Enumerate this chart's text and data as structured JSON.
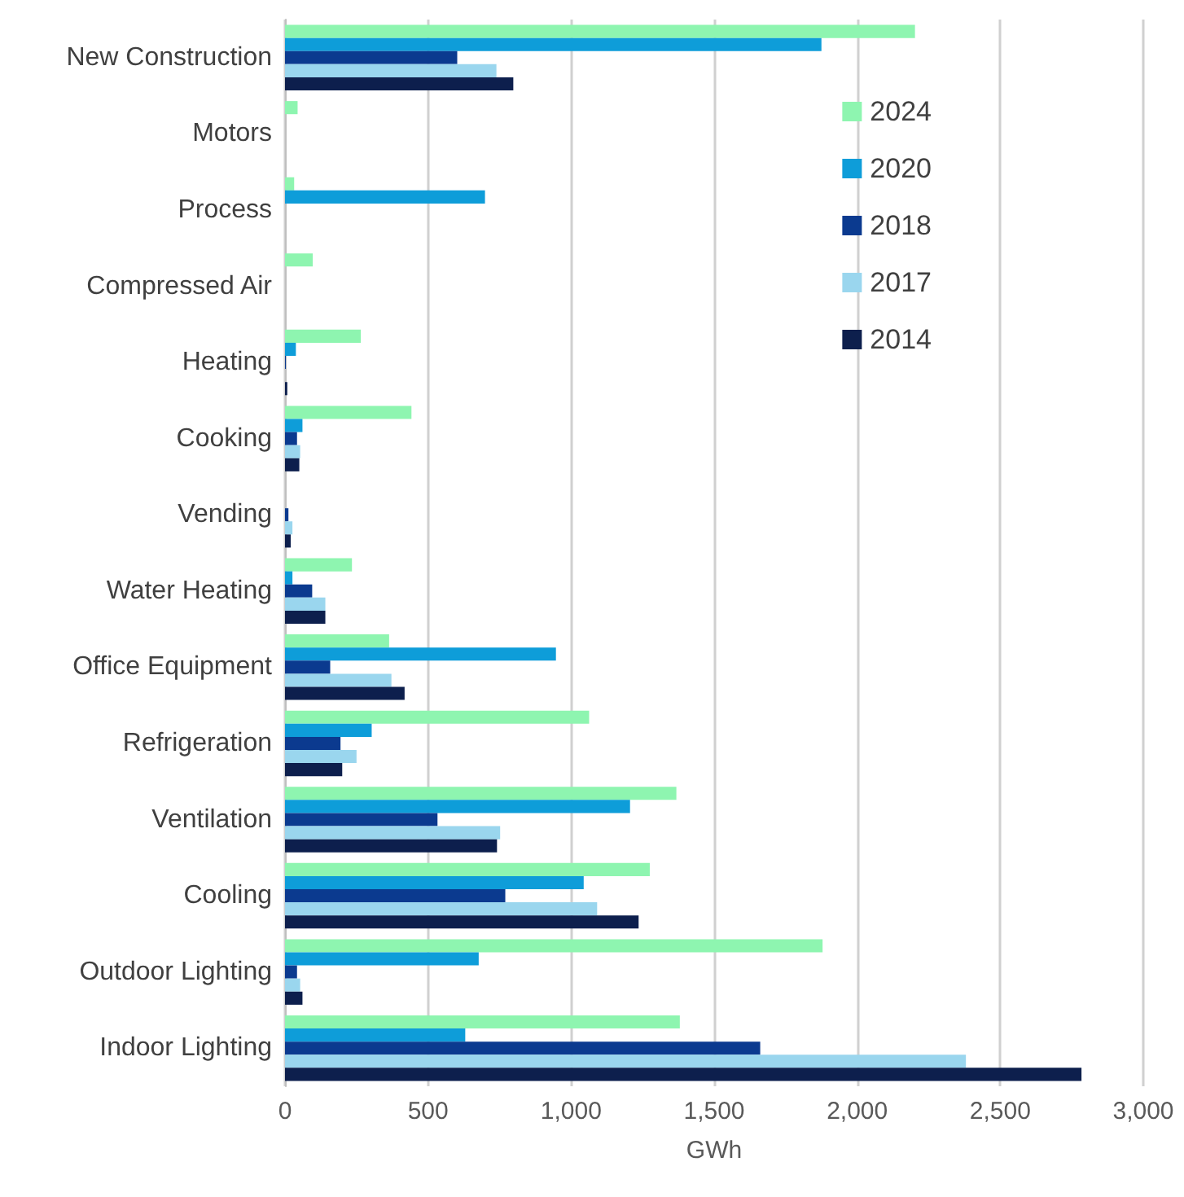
{
  "chart_data": {
    "type": "bar",
    "orientation": "horizontal",
    "xlabel": "GWh",
    "categories": [
      "New Construction",
      "Motors",
      "Process",
      "Compressed Air",
      "Heating",
      "Cooking",
      "Vending",
      "Water Heating",
      "Office Equipment",
      "Refrigeration",
      "Ventilation",
      "Cooling",
      "Outdoor Lighting",
      "Indoor Lighting"
    ],
    "series": [
      {
        "name": "2024",
        "color": "#8ef5b0",
        "values": [
          2202,
          44,
          32,
          97,
          265,
          442,
          0,
          234,
          364,
          1063,
          1368,
          1275,
          1879,
          1380
        ]
      },
      {
        "name": "2020",
        "color": "#0e9dd9",
        "values": [
          1875,
          0,
          699,
          0,
          38,
          61,
          0,
          26,
          947,
          303,
          1206,
          1044,
          677,
          630
        ]
      },
      {
        "name": "2018",
        "color": "#0b3a8f",
        "values": [
          602,
          0,
          0,
          0,
          3,
          42,
          12,
          95,
          158,
          194,
          533,
          770,
          42,
          1661
        ]
      },
      {
        "name": "2017",
        "color": "#9ad6ee",
        "values": [
          739,
          0,
          0,
          0,
          null,
          53,
          26,
          141,
          372,
          250,
          752,
          1091,
          53,
          2380
        ]
      },
      {
        "name": "2014",
        "color": "#0d1f4d",
        "values": [
          798,
          0,
          0,
          0,
          8,
          50,
          20,
          141,
          418,
          200,
          741,
          1236,
          61,
          2784
        ]
      }
    ],
    "xlim": [
      0,
      3000
    ],
    "xticks": [
      0,
      500,
      {
        "value": 1000,
        "label": "1,000"
      },
      {
        "value": 1500,
        "label": "1,500"
      },
      {
        "value": 2000,
        "label": "2,000"
      },
      {
        "value": 2500,
        "label": "2,500"
      },
      {
        "value": 3000,
        "label": "3,000"
      }
    ],
    "grid": "x",
    "legend": "right"
  }
}
